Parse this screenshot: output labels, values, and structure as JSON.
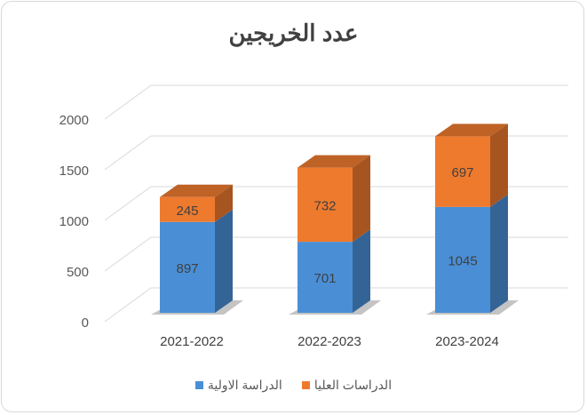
{
  "chart_data": {
    "type": "bar",
    "stacked": true,
    "three_d": true,
    "title": "عدد الخريجين",
    "categories": [
      "2021-2022",
      "2022-2023",
      "2023-2024"
    ],
    "series": [
      {
        "name": "الدراسة الاولية",
        "values": [
          897,
          701,
          1045
        ],
        "color": "#4a8fd6"
      },
      {
        "name": "الدراسات العليا",
        "values": [
          245,
          732,
          697
        ],
        "color": "#ee7a2e"
      }
    ],
    "yticks": [
      0,
      500,
      1000,
      1500,
      2000
    ],
    "ylim": [
      0,
      2000
    ],
    "grid": true,
    "legend": "bottom"
  }
}
